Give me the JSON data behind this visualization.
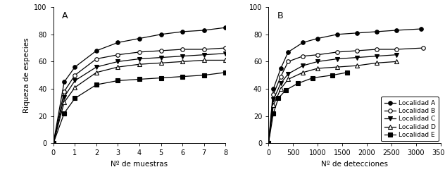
{
  "panel_A": {
    "label": "A",
    "xlabel": "Nº de muestras",
    "ylabel": "Riqueza de especies",
    "xlim": [
      0,
      8
    ],
    "ylim": [
      0,
      100
    ],
    "xticks": [
      0,
      1,
      2,
      3,
      4,
      5,
      6,
      7,
      8
    ],
    "yticks": [
      0,
      20,
      40,
      60,
      80,
      100
    ],
    "series": [
      {
        "label": "Localidad A",
        "marker": "o",
        "fillstyle": "full",
        "x": [
          0,
          0.5,
          1,
          2,
          3,
          4,
          5,
          6,
          7,
          8
        ],
        "y": [
          0,
          45,
          56,
          68,
          74,
          77,
          80,
          82,
          83,
          85
        ]
      },
      {
        "label": "Localidad B",
        "marker": "o",
        "fillstyle": "none",
        "x": [
          0,
          0.5,
          1,
          2,
          3,
          4,
          5,
          6,
          7,
          8
        ],
        "y": [
          0,
          38,
          50,
          62,
          65,
          67,
          68,
          69,
          69,
          70
        ]
      },
      {
        "label": "Localidad C",
        "marker": "v",
        "fillstyle": "full",
        "x": [
          0,
          0.5,
          1,
          2,
          3,
          4,
          5,
          6,
          7,
          8
        ],
        "y": [
          0,
          34,
          46,
          56,
          60,
          62,
          63,
          64,
          65,
          66
        ]
      },
      {
        "label": "Localidad D",
        "marker": "^",
        "fillstyle": "none",
        "x": [
          0,
          0.5,
          1,
          2,
          3,
          4,
          5,
          6,
          7,
          8
        ],
        "y": [
          0,
          30,
          41,
          52,
          56,
          58,
          59,
          60,
          61,
          61
        ]
      },
      {
        "label": "Localidad E",
        "marker": "s",
        "fillstyle": "full",
        "x": [
          0,
          0.5,
          1,
          2,
          3,
          4,
          5,
          6,
          7,
          8
        ],
        "y": [
          0,
          22,
          33,
          43,
          46,
          47,
          48,
          49,
          50,
          52
        ]
      }
    ]
  },
  "panel_B": {
    "label": "B",
    "xlabel": "Nº de detecciones",
    "ylabel": "",
    "xlim": [
      0,
      3500
    ],
    "ylim": [
      0,
      100
    ],
    "xticks": [
      0,
      500,
      1000,
      1500,
      2000,
      2500,
      3000,
      3500
    ],
    "yticks": [
      0,
      20,
      40,
      60,
      80,
      100
    ],
    "series": [
      {
        "label": "Localidad A",
        "marker": "o",
        "fillstyle": "full",
        "x": [
          0,
          100,
          250,
          400,
          700,
          1000,
          1400,
          1800,
          2200,
          2600,
          3100
        ],
        "y": [
          0,
          40,
          55,
          67,
          74,
          77,
          80,
          81,
          82,
          83,
          84
        ]
      },
      {
        "label": "Localidad B",
        "marker": "o",
        "fillstyle": "none",
        "x": [
          0,
          100,
          250,
          400,
          700,
          1000,
          1400,
          1800,
          2200,
          2600,
          3150
        ],
        "y": [
          0,
          36,
          49,
          60,
          64,
          65,
          67,
          68,
          69,
          69,
          70
        ]
      },
      {
        "label": "Localidad C",
        "marker": "v",
        "fillstyle": "full",
        "x": [
          0,
          100,
          250,
          400,
          700,
          1000,
          1400,
          1800,
          2200,
          2600
        ],
        "y": [
          0,
          32,
          44,
          51,
          57,
          60,
          62,
          63,
          64,
          65
        ]
      },
      {
        "label": "Localidad D",
        "marker": "^",
        "fillstyle": "none",
        "x": [
          0,
          100,
          250,
          400,
          700,
          1000,
          1400,
          1800,
          2200,
          2600
        ],
        "y": [
          0,
          28,
          40,
          47,
          52,
          55,
          56,
          57,
          59,
          60
        ]
      },
      {
        "label": "Localidad E",
        "marker": "s",
        "fillstyle": "full",
        "x": [
          0,
          100,
          200,
          350,
          600,
          900,
          1300,
          1600
        ],
        "y": [
          0,
          22,
          33,
          39,
          44,
          48,
          50,
          52
        ]
      }
    ]
  },
  "background_color": "#ffffff",
  "line_color": "black",
  "markersize": 4,
  "linewidth": 0.9,
  "fontsize_labels": 7.5,
  "fontsize_ticks": 7,
  "fontsize_panel": 9,
  "fontsize_legend": 6.5
}
